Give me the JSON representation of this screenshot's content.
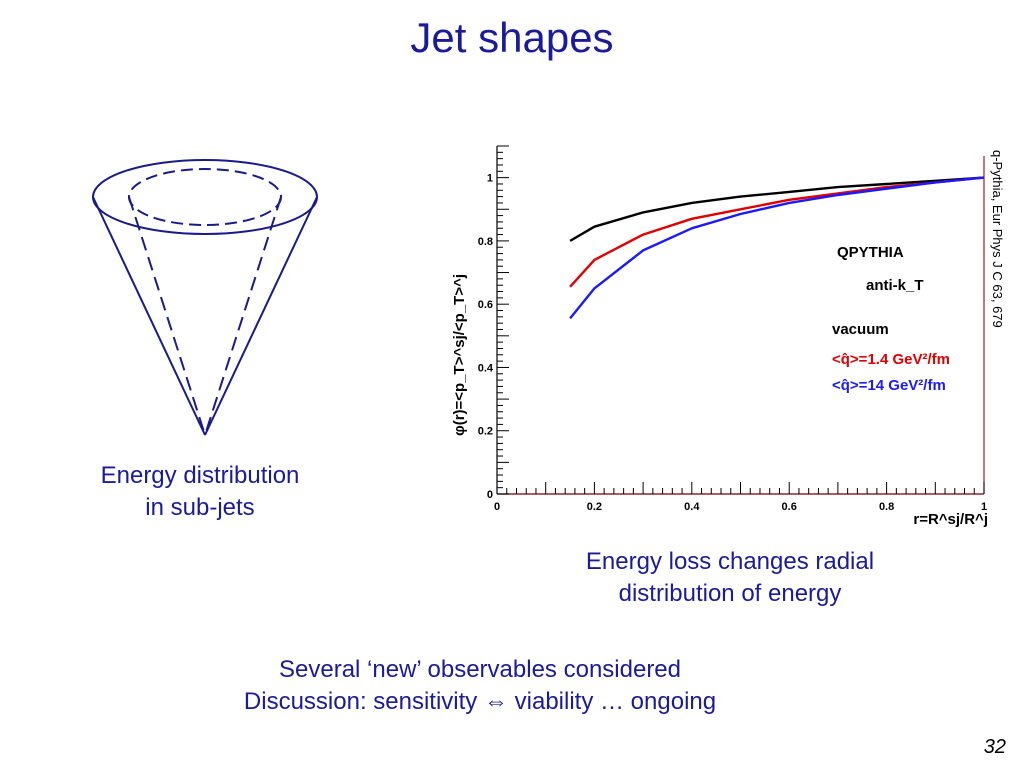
{
  "slide": {
    "title": "Jet shapes",
    "left_caption": [
      "Energy distribution",
      "in sub-jets"
    ],
    "right_caption": [
      "Energy loss changes radial",
      "distribution of energy"
    ],
    "bottom_note": [
      "Several ‘new’ observables considered",
      "Discussion: sensitivity ⇔ viability … ongoing"
    ],
    "reference": "q-Pythia, Eur Phys J C 63, 679",
    "page_number": "32"
  },
  "chart_data": {
    "type": "line",
    "xlim": [
      0,
      1
    ],
    "ylim": [
      0,
      1.1
    ],
    "xticks": [
      0,
      0.2,
      0.4,
      0.6,
      0.8,
      1
    ],
    "yticks": [
      0,
      0.2,
      0.4,
      0.6,
      0.8,
      1
    ],
    "xlabel": "r=R^sj/R^j",
    "ylabel": "φ(r)=<p_T>^sj/<p_T>^j",
    "legend": {
      "position": "right",
      "title": "QPYTHIA",
      "algorithm": "anti-k_T",
      "entries": [
        "vacuum",
        "<q̂>=1.4 GeV²/fm",
        "<q̂>=14 GeV²/fm"
      ]
    },
    "colors": {
      "vacuum": "#000000",
      "q14": "#e00000",
      "q140": "#1a1aff",
      "axis_line": "#a0202a"
    },
    "series": [
      {
        "name": "vacuum",
        "color": "#000000",
        "x": [
          0.15,
          0.2,
          0.3,
          0.4,
          0.5,
          0.6,
          0.7,
          0.8,
          0.9,
          1.0
        ],
        "y": [
          0.8,
          0.845,
          0.89,
          0.92,
          0.94,
          0.955,
          0.97,
          0.98,
          0.99,
          1.0
        ]
      },
      {
        "name": "<q̂>=1.4 GeV²/fm",
        "color": "#e00000",
        "x": [
          0.15,
          0.2,
          0.3,
          0.4,
          0.5,
          0.6,
          0.7,
          0.8,
          0.9,
          1.0
        ],
        "y": [
          0.655,
          0.74,
          0.82,
          0.87,
          0.9,
          0.93,
          0.95,
          0.97,
          0.985,
          1.0
        ]
      },
      {
        "name": "<q̂>=14 GeV²/fm",
        "color": "#1a1aff",
        "x": [
          0.15,
          0.2,
          0.3,
          0.4,
          0.5,
          0.6,
          0.7,
          0.8,
          0.9,
          1.0
        ],
        "y": [
          0.555,
          0.65,
          0.77,
          0.84,
          0.885,
          0.92,
          0.945,
          0.965,
          0.985,
          1.0
        ]
      }
    ]
  }
}
